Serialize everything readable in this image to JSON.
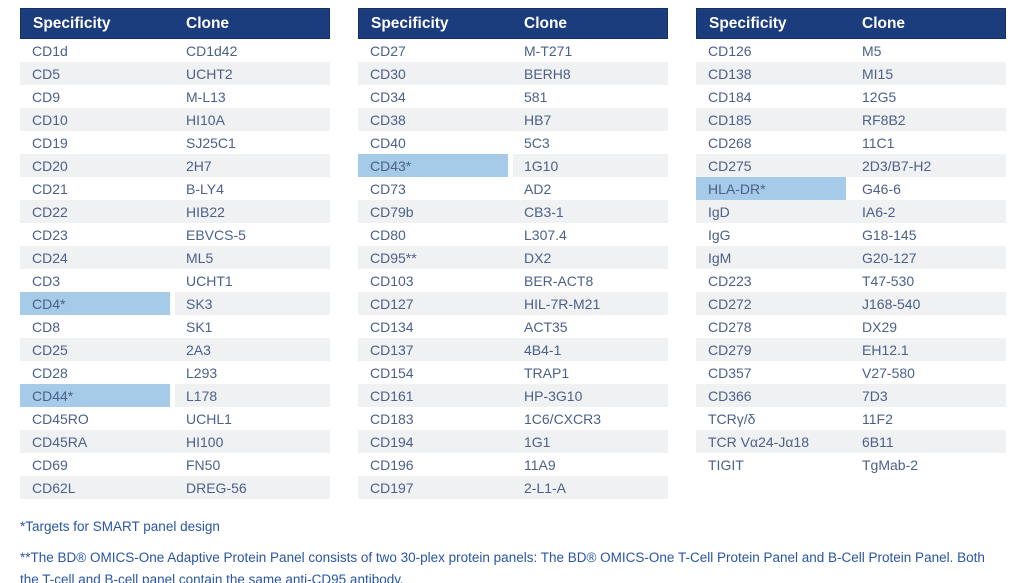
{
  "colors": {
    "header_bg": "#1c3d7d",
    "header_text": "#ffffff",
    "row_alt_bg": "#f0f1f2",
    "highlight_bg": "#a6cbe9",
    "cell_text": "#4c6089",
    "footnote_text": "#2a55a4"
  },
  "tables": [
    {
      "headers": {
        "specificity": "Specificity",
        "clone": "Clone"
      },
      "rows": [
        {
          "specificity": "CD1d",
          "clone": "CD1d42",
          "highlight": false
        },
        {
          "specificity": "CD5",
          "clone": "UCHT2",
          "highlight": false
        },
        {
          "specificity": "CD9",
          "clone": "M-L13",
          "highlight": false
        },
        {
          "specificity": "CD10",
          "clone": "HI10A",
          "highlight": false
        },
        {
          "specificity": "CD19",
          "clone": "SJ25C1",
          "highlight": false
        },
        {
          "specificity": "CD20",
          "clone": "2H7",
          "highlight": false
        },
        {
          "specificity": "CD21",
          "clone": "B-LY4",
          "highlight": false
        },
        {
          "specificity": "CD22",
          "clone": "HIB22",
          "highlight": false
        },
        {
          "specificity": "CD23",
          "clone": "EBVCS-5",
          "highlight": false
        },
        {
          "specificity": "CD24",
          "clone": "ML5",
          "highlight": false
        },
        {
          "specificity": "CD3",
          "clone": "UCHT1",
          "highlight": false
        },
        {
          "specificity": "CD4*",
          "clone": "SK3",
          "highlight": true
        },
        {
          "specificity": "CD8",
          "clone": "SK1",
          "highlight": false
        },
        {
          "specificity": "CD25",
          "clone": "2A3",
          "highlight": false
        },
        {
          "specificity": "CD28",
          "clone": "L293",
          "highlight": false
        },
        {
          "specificity": "CD44*",
          "clone": "L178",
          "highlight": true
        },
        {
          "specificity": "CD45RO",
          "clone": "UCHL1",
          "highlight": false
        },
        {
          "specificity": "CD45RA",
          "clone": "HI100",
          "highlight": false
        },
        {
          "specificity": "CD69",
          "clone": "FN50",
          "highlight": false
        },
        {
          "specificity": "CD62L",
          "clone": "DREG-56",
          "highlight": false
        }
      ]
    },
    {
      "headers": {
        "specificity": "Specificity",
        "clone": "Clone"
      },
      "rows": [
        {
          "specificity": "CD27",
          "clone": "M-T271",
          "highlight": false
        },
        {
          "specificity": "CD30",
          "clone": "BERH8",
          "highlight": false
        },
        {
          "specificity": "CD34",
          "clone": "581",
          "highlight": false
        },
        {
          "specificity": "CD38",
          "clone": "HB7",
          "highlight": false
        },
        {
          "specificity": "CD40",
          "clone": "5C3",
          "highlight": false
        },
        {
          "specificity": "CD43*",
          "clone": "1G10",
          "highlight": true
        },
        {
          "specificity": "CD73",
          "clone": "AD2",
          "highlight": false
        },
        {
          "specificity": "CD79b",
          "clone": "CB3-1",
          "highlight": false
        },
        {
          "specificity": "CD80",
          "clone": "L307.4",
          "highlight": false
        },
        {
          "specificity": "CD95**",
          "clone": "DX2",
          "highlight": false
        },
        {
          "specificity": "CD103",
          "clone": "BER-ACT8",
          "highlight": false
        },
        {
          "specificity": "CD127",
          "clone": "HIL-7R-M21",
          "highlight": false
        },
        {
          "specificity": "CD134",
          "clone": "ACT35",
          "highlight": false
        },
        {
          "specificity": "CD137",
          "clone": "4B4-1",
          "highlight": false
        },
        {
          "specificity": "CD154",
          "clone": "TRAP1",
          "highlight": false
        },
        {
          "specificity": "CD161",
          "clone": "HP-3G10",
          "highlight": false
        },
        {
          "specificity": "CD183",
          "clone": "1C6/CXCR3",
          "highlight": false
        },
        {
          "specificity": "CD194",
          "clone": "1G1",
          "highlight": false
        },
        {
          "specificity": "CD196",
          "clone": "11A9",
          "highlight": false
        },
        {
          "specificity": "CD197",
          "clone": "2-L1-A",
          "highlight": false
        }
      ]
    },
    {
      "headers": {
        "specificity": "Specificity",
        "clone": "Clone"
      },
      "rows": [
        {
          "specificity": "CD126",
          "clone": "M5",
          "highlight": false
        },
        {
          "specificity": "CD138",
          "clone": "MI15",
          "highlight": false
        },
        {
          "specificity": "CD184",
          "clone": "12G5",
          "highlight": false
        },
        {
          "specificity": "CD185",
          "clone": "RF8B2",
          "highlight": false
        },
        {
          "specificity": "CD268",
          "clone": "11C1",
          "highlight": false
        },
        {
          "specificity": "CD275",
          "clone": "2D3/B7-H2",
          "highlight": false
        },
        {
          "specificity": "HLA-DR*",
          "clone": "G46-6",
          "highlight": true
        },
        {
          "specificity": "IgD",
          "clone": "IA6-2",
          "highlight": false
        },
        {
          "specificity": "IgG",
          "clone": "G18-145",
          "highlight": false
        },
        {
          "specificity": "IgM",
          "clone": "G20-127",
          "highlight": false
        },
        {
          "specificity": "CD223",
          "clone": "T47-530",
          "highlight": false
        },
        {
          "specificity": "CD272",
          "clone": "J168-540",
          "highlight": false
        },
        {
          "specificity": "CD278",
          "clone": "DX29",
          "highlight": false
        },
        {
          "specificity": "CD279",
          "clone": "EH12.1",
          "highlight": false
        },
        {
          "specificity": "CD357",
          "clone": "V27-580",
          "highlight": false
        },
        {
          "specificity": "CD366",
          "clone": "7D3",
          "highlight": false
        },
        {
          "specificity": "TCRγ/δ",
          "clone": "11F2",
          "highlight": false
        },
        {
          "specificity": "TCR Vα24-Jα18",
          "clone": "6B11",
          "highlight": false
        },
        {
          "specificity": "TIGIT",
          "clone": "TgMab-2",
          "highlight": false
        }
      ]
    }
  ],
  "footnotes": {
    "line1": "*Targets for SMART panel design",
    "line2": "**The BD® OMICS-One Adaptive Protein Panel consists of two 30-plex protein panels: The BD® OMICS-One T-Cell Protein Panel and B-Cell Protein Panel. Both the T-cell and B-cell panel contain the same anti-CD95 antibody."
  }
}
